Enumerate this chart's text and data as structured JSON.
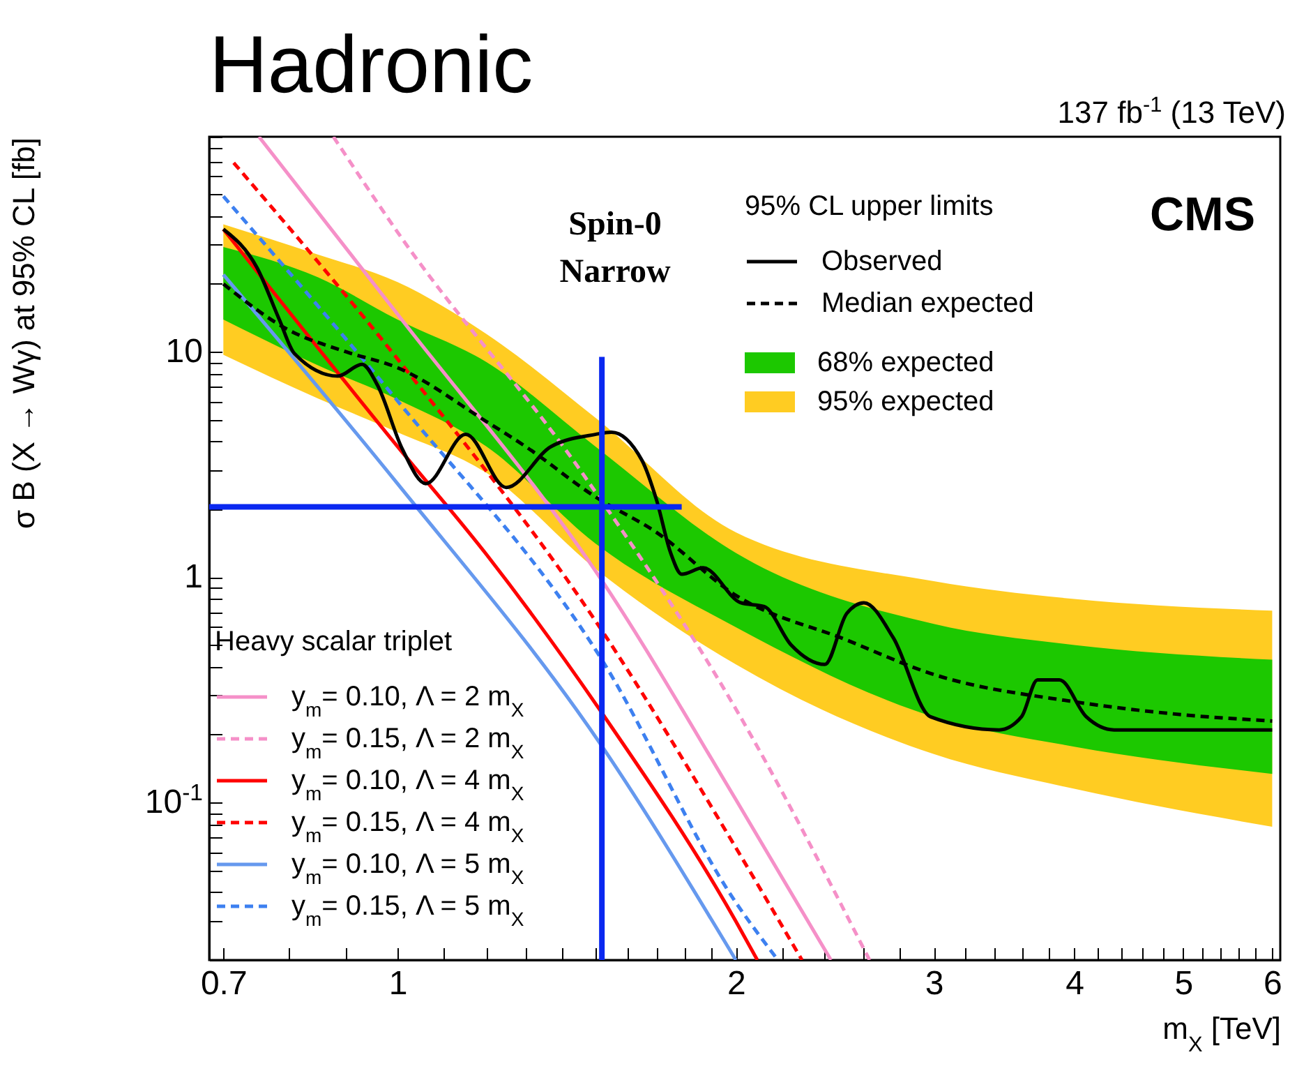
{
  "chart_data": {
    "type": "line",
    "title": "Hadronic",
    "xlabel": "m$_{X}$ [TeV]",
    "ylabel": "σ B (X → Wγ) at 95% CL [fb]",
    "log": "xy",
    "grid": false,
    "legend": [
      "top right",
      "bottom left"
    ],
    "legend_title": [
      "95% CL upper limits",
      "Heavy scalar triplet"
    ],
    "xlim": [
      0.68,
      6.1
    ],
    "xticks": [
      0.7,
      {
        "value": 0.8,
        "label": null
      },
      {
        "value": 0.9,
        "label": null
      },
      1,
      {
        "value": 1.1,
        "label": null
      },
      {
        "value": 1.2,
        "label": null
      },
      {
        "value": 1.3,
        "label": null
      },
      {
        "value": 1.4,
        "label": null
      },
      {
        "value": 1.5,
        "label": null
      },
      {
        "value": 1.6,
        "label": null
      },
      {
        "value": 1.7,
        "label": null
      },
      {
        "value": 1.8,
        "label": null
      },
      {
        "value": 1.9,
        "label": null
      },
      2,
      {
        "value": 2.2,
        "label": null
      },
      {
        "value": 2.4,
        "label": null
      },
      {
        "value": 2.6,
        "label": null
      },
      {
        "value": 2.8,
        "label": null
      },
      3,
      {
        "value": 3.2,
        "label": null
      },
      {
        "value": 3.4,
        "label": null
      },
      {
        "value": 3.6,
        "label": null
      },
      {
        "value": 3.8,
        "label": null
      },
      4,
      {
        "value": 4.2,
        "label": null
      },
      {
        "value": 4.4,
        "label": null
      },
      {
        "value": 4.6,
        "label": null
      },
      {
        "value": 4.8,
        "label": null
      },
      5,
      {
        "value": 5.2,
        "label": null
      },
      {
        "value": 5.4,
        "label": null
      },
      {
        "value": 5.6,
        "label": null
      },
      {
        "value": 5.8,
        "label": null
      },
      6
    ],
    "ylim": [
      0.02,
      90
    ],
    "yticks": [
      {
        "value": 0.02,
        "label": null
      },
      {
        "value": 0.03,
        "label": null
      },
      {
        "value": 0.04,
        "label": null
      },
      {
        "value": 0.05,
        "label": null
      },
      {
        "value": 0.06,
        "label": null
      },
      {
        "value": 0.07,
        "label": null
      },
      {
        "value": 0.08,
        "label": null
      },
      {
        "value": 0.09,
        "label": null
      },
      {
        "value": 0.1,
        "label": "10$^{-1}$"
      },
      {
        "value": 0.2,
        "label": null
      },
      {
        "value": 0.3,
        "label": null
      },
      {
        "value": 0.4,
        "label": null
      },
      {
        "value": 0.5,
        "label": null
      },
      {
        "value": 0.6,
        "label": null
      },
      {
        "value": 0.7,
        "label": null
      },
      {
        "value": 0.8,
        "label": null
      },
      {
        "value": 0.9,
        "label": null
      },
      1,
      {
        "value": 2,
        "label": null
      },
      {
        "value": 3,
        "label": null
      },
      {
        "value": 4,
        "label": null
      },
      {
        "value": 5,
        "label": null
      },
      {
        "value": 6,
        "label": null
      },
      {
        "value": 7,
        "label": null
      },
      {
        "value": 8,
        "label": null
      },
      {
        "value": 9,
        "label": null
      },
      10,
      {
        "value": 20,
        "label": null
      },
      {
        "value": 30,
        "label": null
      },
      {
        "value": 40,
        "label": null
      },
      {
        "value": 50,
        "label": null
      },
      {
        "value": 60,
        "label": null
      },
      {
        "value": 70,
        "label": null
      },
      {
        "value": 80,
        "label": null
      },
      {
        "value": 90,
        "label": null
      }
    ],
    "series": [
      {
        "name": "Observed",
        "type": "line",
        "line_style": "solid",
        "color": "#000000",
        "x": [
          0.7,
          0.75,
          0.785,
          0.81,
          0.885,
          0.93,
          0.96,
          1.01,
          1.06,
          1.15,
          1.25,
          1.37,
          1.5,
          1.55,
          1.65,
          1.7,
          1.75,
          1.79,
          1.87,
          2.02,
          2.12,
          2.24,
          2.4,
          2.51,
          2.6,
          2.76,
          2.98,
          3.43,
          3.59,
          3.71,
          3.88,
          4.1,
          4.34,
          6.0
        ],
        "values": [
          35,
          23.6,
          13.9,
          9.8,
          7.8,
          8.8,
          7.1,
          3.7,
          2.6,
          4.3,
          2.5,
          3.8,
          4.3,
          4.4,
          3.3,
          2.2,
          1.28,
          1.03,
          1.1,
          0.77,
          0.74,
          0.5,
          0.41,
          0.69,
          0.77,
          0.54,
          0.24,
          0.21,
          0.24,
          0.35,
          0.35,
          0.24,
          0.21,
          0.21
        ]
      },
      {
        "name": "Median expected",
        "type": "line",
        "line_style": "dashed",
        "color": "#000000",
        "x": [
          0.7,
          0.8,
          0.9,
          1.0,
          1.2,
          1.3,
          1.5,
          1.7,
          2.0,
          2.5,
          3.0,
          4.0,
          5.0,
          6.0
        ],
        "values": [
          20,
          12.5,
          10,
          8.5,
          4.9,
          3.8,
          2.27,
          1.58,
          0.83,
          0.53,
          0.37,
          0.28,
          0.245,
          0.23
        ]
      },
      {
        "name": "68% expected",
        "type": "area",
        "color": "#1cc800",
        "x": [
          0.7,
          0.85,
          1.0,
          1.2,
          1.5,
          2.0,
          3.0,
          4.0,
          6.0
        ],
        "lower": [
          13.9,
          8.7,
          6.15,
          3.8,
          1.41,
          0.6,
          0.24,
          0.177,
          0.134
        ],
        "upper": [
          29.2,
          21.4,
          13.9,
          9.0,
          3.8,
          1.28,
          0.62,
          0.5,
          0.43
        ],
        "values": [
          null,
          null,
          null,
          null,
          null,
          null,
          null,
          null,
          null
        ]
      },
      {
        "name": "95% expected",
        "type": "area",
        "color": "#ffcc22",
        "x": [
          0.7,
          0.85,
          1.0,
          1.2,
          1.5,
          2.0,
          3.0,
          4.0,
          6.0
        ],
        "lower": [
          9.7,
          6.2,
          4.4,
          2.9,
          1.09,
          0.41,
          0.164,
          0.115,
          0.078
        ],
        "upper": [
          36.8,
          27,
          20.4,
          12.0,
          5.1,
          1.58,
          0.96,
          0.8,
          0.71
        ],
        "values": [
          null,
          null,
          null,
          null,
          null,
          null,
          null,
          null,
          null
        ]
      },
      {
        "name": "y$_{m}$= 0.10, Λ = 2 m$_{X}$",
        "type": "line",
        "line_style": "solid",
        "color": "#f590c8",
        "x": [
          0.753,
          1.0,
          1.53,
          2.0,
          2.43
        ],
        "values": [
          90,
          14.7,
          0.92,
          0.103,
          0.02
        ]
      },
      {
        "name": "y$_{m}$= 0.15, Λ = 2 m$_{X}$",
        "type": "line",
        "line_style": "dashed",
        "color": "#f590c8",
        "x": [
          0.877,
          1.0,
          1.46,
          2.0,
          2.63
        ],
        "values": [
          90,
          34,
          2.9,
          0.26,
          0.02
        ]
      },
      {
        "name": "y$_{m}$= 0.10, Λ = 4 m$_{X}$",
        "type": "line",
        "line_style": "solid",
        "color": "#ff0000",
        "x": [
          0.7,
          1.0,
          1.2,
          1.52,
          2.0,
          2.09
        ],
        "values": [
          35,
          3.8,
          1.26,
          0.25,
          0.0297,
          0.02
        ]
      },
      {
        "name": "y$_{m}$= 0.15, Λ = 4 m$_{X}$",
        "type": "line",
        "line_style": "dashed",
        "color": "#ff0000",
        "x": [
          0.715,
          1.0,
          1.52,
          2.0,
          2.29
        ],
        "values": [
          69,
          9.3,
          0.58,
          0.063,
          0.02
        ]
      },
      {
        "name": "y$_{m}$= 0.10, Λ = 5 m$_{X}$",
        "type": "line",
        "line_style": "solid",
        "color": "#6699ee",
        "x": [
          0.7,
          1.0,
          1.52,
          2.0
        ],
        "values": [
          22,
          2.6,
          0.178,
          0.02
        ]
      },
      {
        "name": "y$_{m}$= 0.15, Λ = 5 m$_{X}$",
        "type": "line",
        "line_style": "dashed",
        "color": "#3d80f0",
        "x": [
          0.7,
          1.0,
          1.52,
          2.0,
          2.18
        ],
        "values": [
          49,
          6.06,
          0.43,
          0.036,
          0.02
        ]
      },
      {
        "type": "line",
        "line_style": "solid",
        "color": "#0a28f0",
        "x": [
          1.52,
          1.52
        ],
        "values": [
          0.02,
          9.5
        ]
      },
      {
        "type": "line",
        "line_style": "solid",
        "color": "#0a28f0",
        "x": [
          0.68,
          1.79
        ],
        "values": [
          2.05,
          2.05
        ]
      }
    ],
    "annotations": [
      "137 fb$^{-1}$ (13 TeV)",
      "CMS",
      "Spin-0\nNarrow"
    ]
  }
}
